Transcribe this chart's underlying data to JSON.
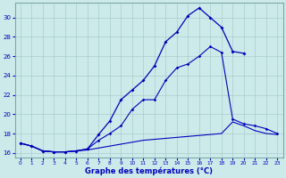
{
  "title": "Graphe des températures (°C)",
  "background_color": "#cdeaea",
  "grid_color": "#a8cccc",
  "line_color": "#0000bb",
  "xlim": [
    -0.5,
    23.5
  ],
  "ylim": [
    15.5,
    31.5
  ],
  "yticks": [
    16,
    18,
    20,
    22,
    24,
    26,
    28,
    30
  ],
  "xticks": [
    0,
    1,
    2,
    3,
    4,
    5,
    6,
    7,
    8,
    9,
    10,
    11,
    12,
    13,
    14,
    15,
    16,
    17,
    18,
    19,
    20,
    21,
    22,
    23
  ],
  "curve_main_x": [
    0,
    1,
    2,
    3,
    4,
    5,
    6,
    7,
    8,
    9,
    10,
    11,
    12,
    13,
    14,
    15,
    16,
    17,
    18,
    19,
    20
  ],
  "curve_main_y": [
    17.0,
    16.7,
    16.2,
    16.1,
    16.1,
    16.2,
    16.4,
    17.9,
    19.3,
    21.5,
    22.5,
    23.5,
    25.0,
    27.5,
    28.5,
    30.2,
    31.0,
    30.0,
    29.0,
    26.5,
    26.3
  ],
  "curve_mid_x": [
    0,
    1,
    2,
    3,
    4,
    5,
    6,
    7,
    8,
    9,
    10,
    11,
    12,
    13,
    14,
    15,
    16,
    17,
    18,
    19,
    20,
    21,
    22,
    23
  ],
  "curve_mid_y": [
    17.0,
    16.7,
    16.2,
    16.1,
    16.1,
    16.2,
    16.4,
    17.3,
    18.0,
    18.8,
    20.5,
    21.5,
    21.5,
    23.5,
    24.8,
    25.2,
    26.0,
    27.0,
    26.4,
    19.5,
    19.0,
    18.8,
    18.5,
    18.0
  ],
  "curve_low_x": [
    0,
    1,
    2,
    3,
    4,
    5,
    6,
    7,
    8,
    9,
    10,
    11,
    12,
    13,
    14,
    15,
    16,
    17,
    18,
    19,
    20,
    21,
    22,
    23
  ],
  "curve_low_y": [
    17.0,
    16.7,
    16.2,
    16.1,
    16.1,
    16.2,
    16.3,
    16.5,
    16.7,
    16.9,
    17.1,
    17.3,
    17.4,
    17.5,
    17.6,
    17.7,
    17.8,
    17.9,
    18.0,
    19.2,
    18.8,
    18.3,
    18.0,
    17.9
  ]
}
